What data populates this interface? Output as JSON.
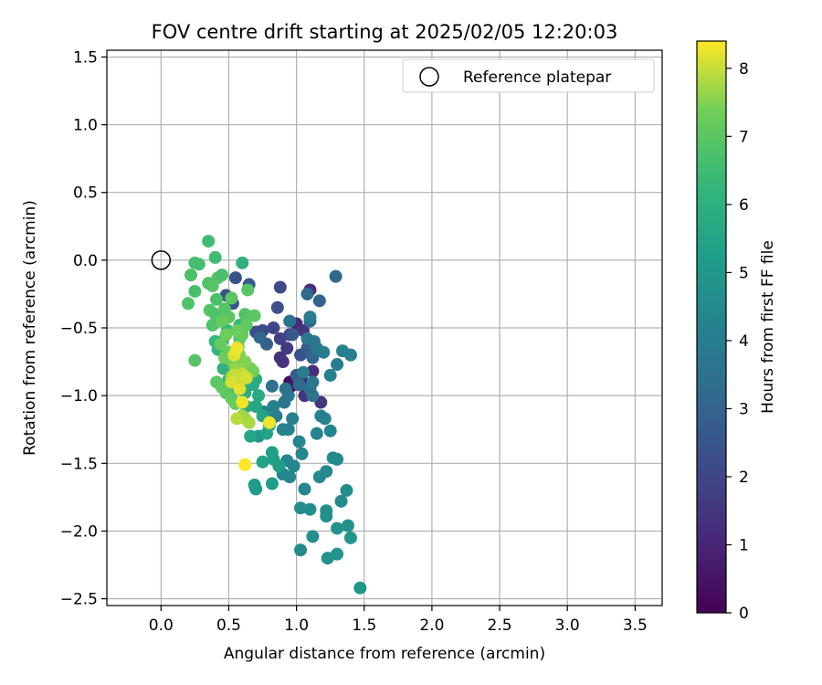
{
  "chart_data": {
    "type": "scatter",
    "title": "FOV centre drift starting at 2025/02/05 12:20:03",
    "xlabel": "Angular distance from reference (arcmin)",
    "ylabel": "Rotation from reference (arcmin)",
    "xlim": [
      -0.4,
      3.7
    ],
    "ylim": [
      -2.55,
      1.55
    ],
    "xticks": [
      0.0,
      0.5,
      1.0,
      1.5,
      2.0,
      2.5,
      3.0,
      3.5
    ],
    "xtick_labels": [
      "0.0",
      "0.5",
      "1.0",
      "1.5",
      "2.0",
      "2.5",
      "3.0",
      "3.5"
    ],
    "yticks": [
      1.5,
      1.0,
      0.5,
      0.0,
      -0.5,
      -1.0,
      -1.5,
      -2.0,
      -2.5
    ],
    "ytick_labels": [
      "1.5",
      "1.0",
      "0.5",
      "0.0",
      "−0.5",
      "−1.0",
      "−1.5",
      "−2.0",
      "−2.5"
    ],
    "grid": true,
    "legend": {
      "position": "top-right",
      "entries": [
        "Reference platepar"
      ]
    },
    "reference_point": {
      "x": 0.0,
      "y": 0.0,
      "marker": "open-circle"
    },
    "colorbar": {
      "label": "Hours from first FF file",
      "range": [
        0,
        8.4
      ],
      "ticks": [
        0,
        1,
        2,
        3,
        4,
        5,
        6,
        7,
        8
      ],
      "tick_labels": [
        "0",
        "1",
        "2",
        "3",
        "4",
        "5",
        "6",
        "7",
        "8"
      ],
      "colormap": "viridis"
    },
    "points": [
      {
        "x": 0.95,
        "y": -0.9,
        "h": 0.3
      },
      {
        "x": 0.96,
        "y": -0.93,
        "h": 0.5
      },
      {
        "x": 1.03,
        "y": -0.86,
        "h": 0.8
      },
      {
        "x": 1.05,
        "y": -0.9,
        "h": 0.9
      },
      {
        "x": 1.1,
        "y": -0.22,
        "h": 1.2
      },
      {
        "x": 1.0,
        "y": -0.47,
        "h": 1.1
      },
      {
        "x": 0.88,
        "y": -0.72,
        "h": 1.3
      },
      {
        "x": 1.05,
        "y": -0.52,
        "h": 1.5
      },
      {
        "x": 1.12,
        "y": -0.82,
        "h": 1.2
      },
      {
        "x": 1.06,
        "y": -1.0,
        "h": 1.4
      },
      {
        "x": 1.18,
        "y": -1.05,
        "h": 1.6
      },
      {
        "x": 0.9,
        "y": -0.75,
        "h": 1.4
      },
      {
        "x": 0.93,
        "y": -0.65,
        "h": 1.6
      },
      {
        "x": 0.88,
        "y": -0.58,
        "h": 1.8
      },
      {
        "x": 0.95,
        "y": -0.55,
        "h": 1.9
      },
      {
        "x": 0.83,
        "y": -0.5,
        "h": 2.0
      },
      {
        "x": 0.75,
        "y": -0.52,
        "h": 2.1
      },
      {
        "x": 0.7,
        "y": -0.53,
        "h": 2.2
      },
      {
        "x": 0.88,
        "y": -0.2,
        "h": 2.1
      },
      {
        "x": 0.86,
        "y": -0.35,
        "h": 2.3
      },
      {
        "x": 0.55,
        "y": -0.13,
        "h": 2.4
      },
      {
        "x": 0.53,
        "y": -0.32,
        "h": 2.5
      },
      {
        "x": 0.48,
        "y": -0.26,
        "h": 2.5
      },
      {
        "x": 0.65,
        "y": -0.18,
        "h": 2.6
      },
      {
        "x": 1.03,
        "y": -0.7,
        "h": 2.4
      },
      {
        "x": 0.97,
        "y": -0.55,
        "h": 2.6
      },
      {
        "x": 1.0,
        "y": -0.85,
        "h": 2.7
      },
      {
        "x": 1.08,
        "y": -0.65,
        "h": 2.8
      },
      {
        "x": 1.12,
        "y": -0.72,
        "h": 3.0
      },
      {
        "x": 0.78,
        "y": -0.62,
        "h": 2.9
      },
      {
        "x": 0.73,
        "y": -0.57,
        "h": 3.1
      },
      {
        "x": 1.08,
        "y": -0.25,
        "h": 3.1
      },
      {
        "x": 1.29,
        "y": -0.12,
        "h": 3.2
      },
      {
        "x": 1.17,
        "y": -0.3,
        "h": 3.0
      },
      {
        "x": 1.1,
        "y": -0.45,
        "h": 3.2
      },
      {
        "x": 1.02,
        "y": -0.92,
        "h": 3.3
      },
      {
        "x": 1.1,
        "y": -0.95,
        "h": 3.4
      },
      {
        "x": 0.92,
        "y": -0.95,
        "h": 3.5
      },
      {
        "x": 0.82,
        "y": -0.93,
        "h": 3.5
      },
      {
        "x": 0.91,
        "y": -1.05,
        "h": 3.6
      },
      {
        "x": 0.94,
        "y": -1.0,
        "h": 3.7
      },
      {
        "x": 1.12,
        "y": -1.0,
        "h": 3.6
      },
      {
        "x": 1.15,
        "y": -0.65,
        "h": 3.8
      },
      {
        "x": 1.2,
        "y": -0.68,
        "h": 3.9
      },
      {
        "x": 1.08,
        "y": -0.58,
        "h": 3.8
      },
      {
        "x": 1.13,
        "y": -0.6,
        "h": 3.7
      },
      {
        "x": 0.95,
        "y": -0.45,
        "h": 3.6
      },
      {
        "x": 1.1,
        "y": -0.42,
        "h": 3.9
      },
      {
        "x": 1.05,
        "y": -0.83,
        "h": 3.9
      },
      {
        "x": 1.12,
        "y": -0.9,
        "h": 3.8
      },
      {
        "x": 1.3,
        "y": -0.77,
        "h": 4.0
      },
      {
        "x": 1.25,
        "y": -0.85,
        "h": 4.1
      },
      {
        "x": 1.4,
        "y": -0.7,
        "h": 4.0
      },
      {
        "x": 1.34,
        "y": -0.67,
        "h": 4.1
      },
      {
        "x": 1.18,
        "y": -1.15,
        "h": 4.2
      },
      {
        "x": 1.21,
        "y": -1.17,
        "h": 4.2
      },
      {
        "x": 1.25,
        "y": -1.26,
        "h": 4.3
      },
      {
        "x": 1.15,
        "y": -1.28,
        "h": 4.3
      },
      {
        "x": 1.02,
        "y": -1.34,
        "h": 4.4
      },
      {
        "x": 1.04,
        "y": -1.43,
        "h": 4.4
      },
      {
        "x": 1.3,
        "y": -1.47,
        "h": 4.5
      },
      {
        "x": 1.27,
        "y": -1.46,
        "h": 4.5
      },
      {
        "x": 1.37,
        "y": -1.7,
        "h": 4.6
      },
      {
        "x": 1.33,
        "y": -1.78,
        "h": 4.6
      },
      {
        "x": 1.22,
        "y": -1.85,
        "h": 4.7
      },
      {
        "x": 1.22,
        "y": -1.89,
        "h": 4.7
      },
      {
        "x": 1.38,
        "y": -1.96,
        "h": 4.8
      },
      {
        "x": 1.3,
        "y": -1.98,
        "h": 4.8
      },
      {
        "x": 1.4,
        "y": -2.05,
        "h": 4.9
      },
      {
        "x": 1.3,
        "y": -2.17,
        "h": 4.9
      },
      {
        "x": 1.23,
        "y": -2.2,
        "h": 4.8
      },
      {
        "x": 1.47,
        "y": -2.42,
        "h": 4.9
      },
      {
        "x": 1.12,
        "y": -2.04,
        "h": 4.7
      },
      {
        "x": 1.03,
        "y": -2.14,
        "h": 4.6
      },
      {
        "x": 1.03,
        "y": -1.83,
        "h": 4.6
      },
      {
        "x": 1.1,
        "y": -1.84,
        "h": 4.7
      },
      {
        "x": 1.17,
        "y": -1.6,
        "h": 4.5
      },
      {
        "x": 1.22,
        "y": -1.56,
        "h": 4.5
      },
      {
        "x": 1.06,
        "y": -1.69,
        "h": 4.4
      },
      {
        "x": 0.95,
        "y": -1.6,
        "h": 4.4
      },
      {
        "x": 0.9,
        "y": -1.58,
        "h": 4.3
      },
      {
        "x": 0.93,
        "y": -1.48,
        "h": 4.3
      },
      {
        "x": 0.98,
        "y": -1.52,
        "h": 4.4
      },
      {
        "x": 0.9,
        "y": -1.25,
        "h": 4.2
      },
      {
        "x": 0.97,
        "y": -1.17,
        "h": 4.1
      },
      {
        "x": 0.94,
        "y": -1.25,
        "h": 4.2
      },
      {
        "x": 0.85,
        "y": -1.15,
        "h": 4.0
      },
      {
        "x": 0.83,
        "y": -1.08,
        "h": 4.1
      },
      {
        "x": 0.76,
        "y": -1.12,
        "h": 4.1
      },
      {
        "x": 0.81,
        "y": -1.18,
        "h": 4.0
      },
      {
        "x": 0.72,
        "y": -1.3,
        "h": 5.0
      },
      {
        "x": 0.69,
        "y": -1.66,
        "h": 5.1
      },
      {
        "x": 0.7,
        "y": -1.69,
        "h": 5.1
      },
      {
        "x": 0.82,
        "y": -1.65,
        "h": 5.2
      },
      {
        "x": 0.87,
        "y": -1.52,
        "h": 5.2
      },
      {
        "x": 0.83,
        "y": -1.47,
        "h": 5.3
      },
      {
        "x": 0.82,
        "y": -1.42,
        "h": 5.3
      },
      {
        "x": 0.75,
        "y": -1.49,
        "h": 5.4
      },
      {
        "x": 0.78,
        "y": -1.28,
        "h": 5.4
      },
      {
        "x": 0.8,
        "y": -1.22,
        "h": 5.5
      },
      {
        "x": 0.75,
        "y": -1.15,
        "h": 5.5
      },
      {
        "x": 0.7,
        "y": -1.08,
        "h": 5.6
      },
      {
        "x": 0.66,
        "y": -1.3,
        "h": 5.6
      },
      {
        "x": 0.72,
        "y": -1.0,
        "h": 5.7
      },
      {
        "x": 0.68,
        "y": -0.92,
        "h": 5.8
      },
      {
        "x": 0.7,
        "y": -0.88,
        "h": 5.8
      },
      {
        "x": 0.62,
        "y": -0.98,
        "h": 5.9
      },
      {
        "x": 0.6,
        "y": -0.93,
        "h": 5.9
      },
      {
        "x": 0.63,
        "y": -1.08,
        "h": 5.7
      },
      {
        "x": 0.55,
        "y": -0.95,
        "h": 6.0
      },
      {
        "x": 0.5,
        "y": -0.88,
        "h": 6.1
      },
      {
        "x": 0.46,
        "y": -0.8,
        "h": 6.1
      },
      {
        "x": 0.42,
        "y": -0.66,
        "h": 6.2
      },
      {
        "x": 0.45,
        "y": -0.6,
        "h": 6.2
      },
      {
        "x": 0.4,
        "y": -0.6,
        "h": 6.3
      },
      {
        "x": 0.49,
        "y": -0.52,
        "h": 6.3
      },
      {
        "x": 0.58,
        "y": -0.48,
        "h": 6.4
      },
      {
        "x": 0.6,
        "y": -0.02,
        "h": 6.0
      },
      {
        "x": 0.4,
        "y": 0.02,
        "h": 6.5
      },
      {
        "x": 0.35,
        "y": 0.14,
        "h": 6.5
      },
      {
        "x": 0.25,
        "y": -0.02,
        "h": 6.6
      },
      {
        "x": 0.28,
        "y": -0.03,
        "h": 6.6
      },
      {
        "x": 0.22,
        "y": -0.11,
        "h": 6.7
      },
      {
        "x": 0.25,
        "y": -0.23,
        "h": 6.7
      },
      {
        "x": 0.2,
        "y": -0.32,
        "h": 6.8
      },
      {
        "x": 0.35,
        "y": -0.17,
        "h": 6.8
      },
      {
        "x": 0.38,
        "y": -0.19,
        "h": 6.9
      },
      {
        "x": 0.42,
        "y": -0.13,
        "h": 6.9
      },
      {
        "x": 0.45,
        "y": -0.11,
        "h": 6.7
      },
      {
        "x": 0.36,
        "y": -0.37,
        "h": 6.9
      },
      {
        "x": 0.4,
        "y": -0.4,
        "h": 6.8
      },
      {
        "x": 0.38,
        "y": -0.48,
        "h": 6.8
      },
      {
        "x": 0.41,
        "y": -0.29,
        "h": 6.7
      },
      {
        "x": 0.47,
        "y": -0.36,
        "h": 6.9
      },
      {
        "x": 0.5,
        "y": -0.42,
        "h": 7.0
      },
      {
        "x": 0.62,
        "y": -0.4,
        "h": 6.8
      },
      {
        "x": 0.64,
        "y": -0.22,
        "h": 6.9
      },
      {
        "x": 0.69,
        "y": -0.41,
        "h": 7.0
      },
      {
        "x": 0.52,
        "y": -0.28,
        "h": 7.0
      },
      {
        "x": 0.58,
        "y": -0.58,
        "h": 7.0
      },
      {
        "x": 0.25,
        "y": -0.74,
        "h": 6.9
      },
      {
        "x": 0.48,
        "y": -0.98,
        "h": 7.0
      },
      {
        "x": 0.41,
        "y": -0.9,
        "h": 7.0
      },
      {
        "x": 0.45,
        "y": -0.94,
        "h": 7.1
      },
      {
        "x": 0.52,
        "y": -1.02,
        "h": 7.1
      },
      {
        "x": 0.55,
        "y": -1.06,
        "h": 7.2
      },
      {
        "x": 0.6,
        "y": -0.55,
        "h": 7.2
      },
      {
        "x": 0.56,
        "y": -0.52,
        "h": 7.3
      },
      {
        "x": 0.63,
        "y": -0.48,
        "h": 7.1
      },
      {
        "x": 0.45,
        "y": -0.45,
        "h": 7.2
      },
      {
        "x": 0.48,
        "y": -0.55,
        "h": 7.3
      },
      {
        "x": 0.44,
        "y": -0.62,
        "h": 7.2
      },
      {
        "x": 0.47,
        "y": -0.72,
        "h": 7.3
      },
      {
        "x": 0.5,
        "y": -0.68,
        "h": 7.2
      },
      {
        "x": 0.57,
        "y": -0.64,
        "h": 7.4
      },
      {
        "x": 0.53,
        "y": -0.75,
        "h": 7.4
      },
      {
        "x": 0.66,
        "y": -0.8,
        "h": 7.3
      },
      {
        "x": 0.68,
        "y": -0.82,
        "h": 7.4
      },
      {
        "x": 0.62,
        "y": -0.75,
        "h": 7.5
      },
      {
        "x": 0.58,
        "y": -0.7,
        "h": 7.5
      },
      {
        "x": 0.55,
        "y": -0.8,
        "h": 7.6
      },
      {
        "x": 0.52,
        "y": -0.86,
        "h": 7.6
      },
      {
        "x": 0.6,
        "y": -1.15,
        "h": 7.7
      },
      {
        "x": 0.62,
        "y": -1.17,
        "h": 7.7
      },
      {
        "x": 0.65,
        "y": -1.2,
        "h": 7.8
      },
      {
        "x": 0.56,
        "y": -1.17,
        "h": 7.9
      },
      {
        "x": 0.57,
        "y": -0.88,
        "h": 7.9
      },
      {
        "x": 0.54,
        "y": -0.85,
        "h": 8.0
      },
      {
        "x": 0.6,
        "y": -0.84,
        "h": 8.0
      },
      {
        "x": 0.63,
        "y": -0.87,
        "h": 8.1
      },
      {
        "x": 0.52,
        "y": -0.9,
        "h": 8.1
      },
      {
        "x": 0.58,
        "y": -0.95,
        "h": 8.2
      },
      {
        "x": 0.54,
        "y": -0.7,
        "h": 8.2
      },
      {
        "x": 0.56,
        "y": -0.65,
        "h": 8.3
      },
      {
        "x": 0.6,
        "y": -1.05,
        "h": 8.3
      },
      {
        "x": 0.8,
        "y": -1.2,
        "h": 8.3
      },
      {
        "x": 0.62,
        "y": -1.51,
        "h": 8.4
      }
    ]
  }
}
